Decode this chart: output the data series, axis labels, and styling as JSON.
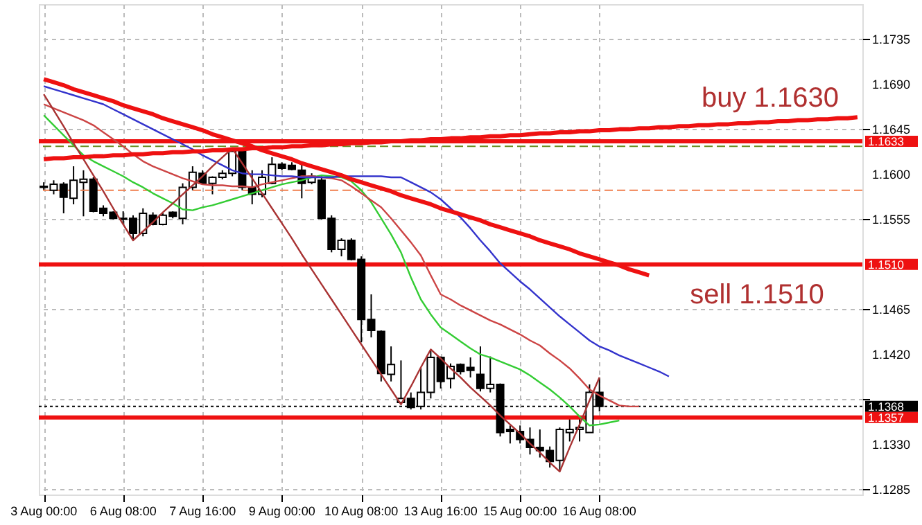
{
  "chart_data": {
    "type": "candlestick",
    "categories": [
      "3 Aug 00:00",
      null,
      null,
      null,
      null,
      null,
      null,
      null,
      "6 Aug 08:00",
      null,
      null,
      null,
      null,
      null,
      null,
      null,
      "7 Aug 16:00",
      null,
      null,
      null,
      null,
      null,
      null,
      null,
      "9 Aug 00:00",
      null,
      null,
      null,
      null,
      null,
      null,
      null,
      "10 Aug 08:00",
      null,
      null,
      null,
      null,
      null,
      null,
      null,
      "13 Aug 16:00",
      null,
      null,
      null,
      null,
      null,
      null,
      null,
      "15 Aug 00:00",
      null,
      null,
      null,
      null,
      null,
      null,
      null,
      "16 Aug 08:00",
      null,
      null,
      null,
      null,
      null,
      null,
      null,
      null,
      null,
      null,
      null,
      null,
      null,
      null,
      null,
      null,
      null,
      null,
      null,
      null,
      null,
      null,
      null,
      null,
      null,
      null
    ],
    "ohlc": [
      [
        1.1587,
        1.1592,
        1.1584,
        1.1588
      ],
      [
        1.1584,
        1.1594,
        1.158,
        1.159
      ],
      [
        1.159,
        1.1592,
        1.1561,
        1.1577
      ],
      [
        1.1576,
        1.1608,
        1.157,
        1.1594
      ],
      [
        1.1592,
        1.1604,
        1.1558,
        1.1595
      ],
      [
        1.1595,
        1.1597,
        1.1562,
        1.1563
      ],
      [
        1.1566,
        1.1569,
        1.1558,
        1.1561
      ],
      [
        1.1562,
        1.1563,
        1.1555,
        1.1556
      ],
      [
        1.1556,
        1.1563,
        1.155,
        1.1555
      ],
      [
        1.1556,
        1.1559,
        1.1534,
        1.1541
      ],
      [
        1.1541,
        1.1566,
        1.1538,
        1.1561
      ],
      [
        1.1559,
        1.1562,
        1.1549,
        1.155
      ],
      [
        1.155,
        1.1561,
        1.1549,
        1.1559
      ],
      [
        1.1562,
        1.1563,
        1.1556,
        1.1558
      ],
      [
        1.1556,
        1.1591,
        1.155,
        1.1587
      ],
      [
        1.1587,
        1.1608,
        1.1584,
        1.1602
      ],
      [
        1.1601,
        1.1604,
        1.159,
        1.1591
      ],
      [
        1.1591,
        1.1598,
        1.158,
        1.1597
      ],
      [
        1.1597,
        1.1604,
        1.1595,
        1.1601
      ],
      [
        1.1601,
        1.1626,
        1.1598,
        1.1623
      ],
      [
        1.1623,
        1.1626,
        1.1584,
        1.1587
      ],
      [
        1.1587,
        1.1604,
        1.157,
        1.158
      ],
      [
        1.158,
        1.1604,
        1.1577,
        1.1597
      ],
      [
        1.1591,
        1.1617,
        1.159,
        1.161
      ],
      [
        1.161,
        1.1612,
        1.1604,
        1.1606
      ],
      [
        1.1609,
        1.1612,
        1.1604,
        1.1605
      ],
      [
        1.1604,
        1.1612,
        1.1576,
        1.1591
      ],
      [
        1.1592,
        1.1601,
        1.159,
        1.1598
      ],
      [
        1.1594,
        1.1598,
        1.1555,
        1.1556
      ],
      [
        1.1556,
        1.1559,
        1.1522,
        1.1525
      ],
      [
        1.1525,
        1.1536,
        1.1518,
        1.1534
      ],
      [
        1.1534,
        1.1536,
        1.1514,
        1.1515
      ],
      [
        1.1515,
        1.1518,
        1.1432,
        1.1455
      ],
      [
        1.1455,
        1.148,
        1.1437,
        1.1444
      ],
      [
        1.1443,
        1.1444,
        1.1393,
        1.1401
      ],
      [
        1.14,
        1.1428,
        1.1393,
        1.141
      ],
      [
        1.1372,
        1.1414,
        1.137,
        1.1376
      ],
      [
        1.1376,
        1.1382,
        1.1365,
        1.1367
      ],
      [
        1.1368,
        1.1407,
        1.1365,
        1.1382
      ],
      [
        1.1382,
        1.1425,
        1.1376,
        1.1417
      ],
      [
        1.1417,
        1.1418,
        1.1386,
        1.1393
      ],
      [
        1.1396,
        1.1411,
        1.1386,
        1.1408
      ],
      [
        1.141,
        1.1411,
        1.14,
        1.1403
      ],
      [
        1.1407,
        1.1417,
        1.1397,
        1.1404
      ],
      [
        1.14,
        1.1428,
        1.1383,
        1.1386
      ],
      [
        1.1386,
        1.1418,
        1.1382,
        1.139
      ],
      [
        1.139,
        1.1391,
        1.1338,
        1.1342
      ],
      [
        1.1345,
        1.1349,
        1.1331,
        1.1343
      ],
      [
        1.1343,
        1.1349,
        1.1331,
        1.1335
      ],
      [
        1.1335,
        1.1347,
        1.132,
        1.1327
      ],
      [
        1.1327,
        1.1345,
        1.1317,
        1.1324
      ],
      [
        1.1324,
        1.1328,
        1.1307,
        1.1313
      ],
      [
        1.1314,
        1.1347,
        1.1303,
        1.1345
      ],
      [
        1.1342,
        1.1356,
        1.1333,
        1.1345
      ],
      [
        1.1345,
        1.1356,
        1.1333,
        1.1347
      ],
      [
        1.1342,
        1.139,
        1.1342,
        1.1382
      ],
      [
        1.1382,
        1.1397,
        1.1363,
        1.1368
      ],
      null,
      null,
      null,
      null,
      null,
      null,
      null,
      null,
      null,
      null,
      null,
      null,
      null,
      null,
      null,
      null,
      null,
      null,
      null,
      null,
      null,
      null,
      null,
      null,
      null,
      null
    ],
    "series": [
      {
        "type": "line",
        "color": "#33cc33",
        "values": [
          1.1659,
          1.1649,
          1.1639,
          1.1629,
          1.1619,
          1.1613,
          1.1608,
          1.1603,
          1.1598,
          1.1592,
          1.1587,
          1.1581,
          1.1576,
          1.1571,
          1.1565,
          1.1564,
          1.1567,
          1.1569,
          1.1572,
          1.1575,
          1.1578,
          1.1581,
          1.1584,
          1.1587,
          1.159,
          1.1592,
          1.1594,
          1.1597,
          1.1599,
          1.1598,
          1.1597,
          1.1593,
          1.1584,
          1.1572,
          1.1556,
          1.154,
          1.1522,
          1.1497,
          1.1475,
          1.146,
          1.1447,
          1.144,
          1.1433,
          1.1426,
          1.142,
          1.1417,
          1.1413,
          1.1409,
          1.1405,
          1.1399,
          1.1392,
          1.1385,
          1.1377,
          1.1368,
          1.1358,
          1.1349,
          1.135,
          1.1352,
          1.1354,
          null,
          null,
          null,
          null,
          null,
          null,
          null,
          null,
          null,
          null,
          null,
          null,
          null,
          null,
          null,
          null,
          null,
          null,
          null,
          null,
          null,
          null,
          null,
          null
        ]
      },
      {
        "type": "line",
        "color": "#cc4444",
        "values": [
          1.167,
          1.1666,
          1.1662,
          1.1658,
          1.1654,
          1.1649,
          1.1642,
          1.1635,
          1.1628,
          1.162,
          1.1613,
          1.1608,
          1.1604,
          1.16,
          1.1596,
          1.1593,
          1.159,
          1.1589,
          1.1589,
          1.1588,
          1.1588,
          1.1587,
          1.159,
          1.1592,
          1.1594,
          1.1596,
          1.1598,
          1.1598,
          1.1597,
          1.1596,
          1.1594,
          1.1588,
          1.1581,
          1.1574,
          1.1567,
          1.1556,
          1.1544,
          1.1532,
          1.1519,
          1.1499,
          1.148,
          1.1475,
          1.1469,
          1.1464,
          1.1459,
          1.1454,
          1.145,
          1.1445,
          1.144,
          1.1434,
          1.1429,
          1.1421,
          1.1414,
          1.1406,
          1.1396,
          1.1385,
          1.1379,
          1.1374,
          1.1369,
          1.1368,
          1.1368,
          null,
          null,
          null,
          null,
          null,
          null,
          null,
          null,
          null,
          null,
          null,
          null,
          null,
          null,
          null,
          null,
          null,
          null,
          null,
          null,
          null,
          null
        ]
      },
      {
        "type": "line",
        "color": "#3333cc",
        "values": [
          1.1688,
          1.1685,
          1.1682,
          1.1679,
          1.1676,
          1.1673,
          1.167,
          1.1665,
          1.166,
          1.1655,
          1.165,
          1.1645,
          1.164,
          1.1635,
          1.163,
          1.1625,
          1.1619,
          1.1614,
          1.1609,
          1.1604,
          1.1601,
          1.16,
          1.16,
          1.1599,
          1.1598,
          1.1598,
          1.1597,
          1.1597,
          1.1597,
          1.1597,
          1.1598,
          1.1598,
          1.1598,
          1.1598,
          1.1598,
          1.1597,
          1.1597,
          1.1592,
          1.1587,
          1.1582,
          1.1575,
          1.1566,
          1.1557,
          1.1546,
          1.1534,
          1.1523,
          1.1511,
          1.1502,
          1.1493,
          1.1485,
          1.1476,
          1.1467,
          1.1458,
          1.145,
          1.1442,
          1.1434,
          1.1428,
          1.1424,
          1.1419,
          1.1415,
          1.1411,
          1.1407,
          1.1403,
          1.1398,
          null,
          null,
          null,
          null,
          null,
          null,
          null,
          null,
          null,
          null,
          null,
          null,
          null,
          null,
          null,
          null,
          null,
          null,
          null
        ]
      },
      {
        "type": "line",
        "color": "#a83232",
        "values": [
          1.168,
          1.1664,
          1.1648,
          1.1631,
          1.1615,
          1.1599,
          1.1583,
          1.1566,
          1.155,
          1.1534,
          1.1543,
          1.1552,
          1.1562,
          1.1571,
          1.158,
          1.1589,
          1.1598,
          1.1608,
          1.1617,
          1.1626,
          1.1611,
          1.1596,
          1.1581,
          1.1566,
          1.1551,
          1.1536,
          1.152,
          1.1505,
          1.149,
          1.1475,
          1.146,
          1.1445,
          1.143,
          1.1415,
          1.14,
          1.1385,
          1.137,
          1.1388,
          1.1407,
          1.1425,
          1.1416,
          1.1406,
          1.1397,
          1.1387,
          1.1378,
          1.1369,
          1.1359,
          1.135,
          1.1341,
          1.1331,
          1.1322,
          1.1312,
          1.1303,
          1.1327,
          1.135,
          1.1374,
          1.1397,
          null,
          null,
          null,
          null,
          null,
          null,
          null,
          null,
          null,
          null,
          null,
          null,
          null,
          null,
          null,
          null,
          null,
          null,
          null,
          null,
          null,
          null,
          null,
          null,
          null,
          null
        ]
      },
      {
        "type": "line",
        "color": "#ee1111",
        "values": [
          1.1695,
          1.1692,
          1.1689,
          1.1685,
          1.1682,
          1.1679,
          1.1676,
          1.1673,
          1.1669,
          1.1666,
          1.1663,
          1.166,
          1.1656,
          1.1653,
          1.165,
          1.1647,
          1.1644,
          1.164,
          1.1637,
          1.1634,
          1.1631,
          1.1628,
          1.1624,
          1.1621,
          1.1618,
          1.1615,
          1.1611,
          1.1608,
          1.1605,
          1.1602,
          1.1599,
          1.1595,
          1.1592,
          1.1589,
          1.1586,
          1.1583,
          1.1579,
          1.1576,
          1.1573,
          1.157,
          1.1566,
          1.1563,
          1.156,
          1.1557,
          1.1554,
          1.155,
          1.1547,
          1.1544,
          1.1541,
          1.1538,
          1.1534,
          1.1531,
          1.1528,
          1.1525,
          1.1521,
          1.1518,
          1.1515,
          1.1512,
          1.1509,
          1.1505,
          1.1502,
          1.1499,
          null,
          null,
          null,
          null,
          null,
          null,
          null,
          null,
          null,
          null,
          null,
          null,
          null,
          null,
          null,
          null,
          null,
          null,
          null,
          null,
          null
        ]
      },
      {
        "type": "line",
        "color": "#ee1111",
        "values": [
          1.1615,
          1.1616,
          1.1616,
          1.1617,
          1.1617,
          1.1618,
          1.1618,
          1.1619,
          1.1619,
          1.162,
          1.162,
          1.1621,
          1.1621,
          1.1622,
          1.1622,
          1.1623,
          1.1623,
          1.1624,
          1.1624,
          1.1625,
          1.1625,
          1.1626,
          1.1626,
          1.1627,
          1.1627,
          1.1628,
          1.1628,
          1.1629,
          1.1629,
          1.163,
          1.163,
          1.1631,
          1.1631,
          1.1632,
          1.1632,
          1.1633,
          1.1633,
          1.1634,
          1.1634,
          1.1635,
          1.1635,
          1.1636,
          1.1636,
          1.1637,
          1.1637,
          1.1638,
          1.1638,
          1.1639,
          1.1639,
          1.164,
          1.1641,
          1.1641,
          1.1642,
          1.1642,
          1.1643,
          1.1643,
          1.1644,
          1.1644,
          1.1645,
          1.1645,
          1.1646,
          1.1646,
          1.1647,
          1.1647,
          1.1648,
          1.1648,
          1.1649,
          1.1649,
          1.165,
          1.165,
          1.1651,
          1.1651,
          1.1652,
          1.1652,
          1.1653,
          1.1653,
          1.1654,
          1.1654,
          1.1655,
          1.1655,
          1.1656,
          1.1656,
          1.1657
        ]
      }
    ],
    "ylim": [
      1.128,
      1.177
    ],
    "yticks": [
      1.1285,
      {
        "value": 1.133,
        "label": "1.1330"
      },
      {
        "value": 1.1375,
        "label": null
      },
      {
        "value": 1.142,
        "label": "1.1420"
      },
      1.1465,
      {
        "value": 1.151,
        "label": null
      },
      1.1555,
      {
        "value": 1.16,
        "label": "1.1600"
      },
      1.1645,
      {
        "value": 1.169,
        "label": "1.1690"
      },
      1.1735
    ],
    "grid": true,
    "ref_lines": [
      {
        "axis": "y",
        "value": 1.1633,
        "label": "1.1633",
        "color": "#ee1111",
        "line_style": "solid"
      },
      {
        "axis": "y",
        "value": 1.151,
        "label": "1.1510",
        "color": "#ee1111",
        "line_style": "solid"
      },
      {
        "axis": "y",
        "value": 1.1368,
        "label": "1.1368",
        "color": "#000000",
        "line_style": "dotted"
      },
      {
        "axis": "y",
        "value": 1.1357,
        "label": "1.1357",
        "color": "#ee1111",
        "line_style": "solid"
      },
      {
        "axis": "y",
        "value": 1.1628,
        "color": "#6b8e23",
        "line_style": "dashed"
      },
      {
        "axis": "y",
        "value": 1.1584,
        "color": "#f08050",
        "line_style": "dashed"
      }
    ],
    "annotations": [
      "buy 1.1630",
      "sell 1.1510"
    ]
  }
}
